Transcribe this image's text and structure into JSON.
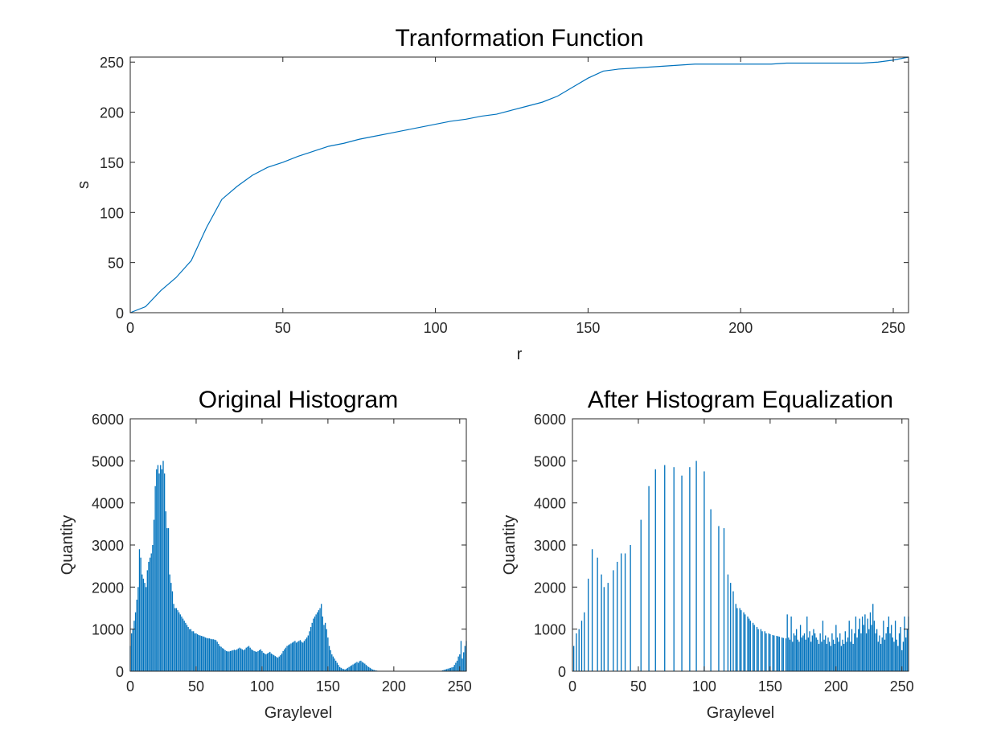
{
  "chart_data": [
    {
      "type": "line",
      "title": "Tranformation Function",
      "xlabel": "r",
      "ylabel": "s",
      "color": "#0072bd",
      "x": [
        0,
        5,
        10,
        15,
        20,
        25,
        30,
        35,
        40,
        45,
        50,
        55,
        60,
        65,
        70,
        75,
        80,
        85,
        90,
        95,
        100,
        105,
        110,
        115,
        120,
        125,
        130,
        135,
        140,
        145,
        150,
        155,
        160,
        165,
        170,
        175,
        180,
        185,
        190,
        195,
        200,
        205,
        210,
        215,
        220,
        225,
        230,
        235,
        240,
        245,
        250,
        255
      ],
      "values": [
        0,
        6,
        22,
        35,
        52,
        85,
        113,
        126,
        137,
        145,
        150,
        156,
        161,
        166,
        169,
        173,
        176,
        179,
        182,
        185,
        188,
        191,
        193,
        196,
        198,
        202,
        206,
        210,
        216,
        225,
        234,
        241,
        243,
        244,
        245,
        246,
        247,
        248,
        248,
        248,
        248,
        248,
        248,
        249,
        249,
        249,
        249,
        249,
        249,
        250,
        252,
        255
      ],
      "xlim": [
        0,
        255
      ],
      "xticks": [
        0,
        50,
        100,
        150,
        200,
        250
      ],
      "ylim": [
        0,
        255
      ],
      "yticks": [
        0,
        50,
        100,
        150,
        200,
        250
      ]
    },
    {
      "type": "bar",
      "title": "Original Histogram",
      "xlabel": "Graylevel",
      "ylabel": "Quantity",
      "color": "#0072bd",
      "x": [
        0,
        1,
        2,
        3,
        4,
        5,
        6,
        7,
        8,
        9,
        10,
        11,
        12,
        13,
        14,
        15,
        16,
        17,
        18,
        19,
        20,
        21,
        22,
        23,
        24,
        25,
        26,
        27,
        28,
        29,
        30,
        31,
        32,
        33,
        34,
        35,
        36,
        37,
        38,
        39,
        40,
        41,
        42,
        43,
        44,
        45,
        46,
        47,
        48,
        49,
        50,
        51,
        52,
        53,
        54,
        55,
        56,
        57,
        58,
        59,
        60,
        61,
        62,
        63,
        64,
        65,
        66,
        67,
        68,
        69,
        70,
        71,
        72,
        73,
        74,
        75,
        76,
        77,
        78,
        79,
        80,
        81,
        82,
        83,
        84,
        85,
        86,
        87,
        88,
        89,
        90,
        91,
        92,
        93,
        94,
        95,
        96,
        97,
        98,
        99,
        100,
        101,
        102,
        103,
        104,
        105,
        106,
        107,
        108,
        109,
        110,
        111,
        112,
        113,
        114,
        115,
        116,
        117,
        118,
        119,
        120,
        121,
        122,
        123,
        124,
        125,
        126,
        127,
        128,
        129,
        130,
        131,
        132,
        133,
        134,
        135,
        136,
        137,
        138,
        139,
        140,
        141,
        142,
        143,
        144,
        145,
        146,
        147,
        148,
        149,
        150,
        151,
        152,
        153,
        154,
        155,
        156,
        157,
        158,
        159,
        160,
        161,
        162,
        163,
        164,
        165,
        166,
        167,
        168,
        169,
        170,
        171,
        172,
        173,
        174,
        175,
        176,
        177,
        178,
        179,
        180,
        181,
        182,
        183,
        184,
        185,
        186,
        187,
        188,
        189,
        190,
        191,
        192,
        193,
        194,
        195,
        196,
        197,
        198,
        199,
        200,
        201,
        202,
        203,
        204,
        205,
        206,
        207,
        208,
        209,
        210,
        211,
        212,
        213,
        214,
        215,
        216,
        217,
        218,
        219,
        220,
        221,
        222,
        223,
        224,
        225,
        226,
        227,
        228,
        229,
        230,
        231,
        232,
        233,
        234,
        235,
        236,
        237,
        238,
        239,
        240,
        241,
        242,
        243,
        244,
        245,
        246,
        247,
        248,
        249,
        250,
        251,
        252,
        253,
        254,
        255
      ],
      "values": [
        600,
        900,
        1000,
        1200,
        1400,
        1700,
        2000,
        2900,
        2700,
        2300,
        2200,
        2100,
        2000,
        2400,
        2600,
        2700,
        2800,
        3000,
        3600,
        4400,
        4800,
        4900,
        4700,
        4900,
        4800,
        5000,
        4700,
        3800,
        3400,
        3400,
        2300,
        2100,
        1900,
        1600,
        1500,
        1500,
        1450,
        1400,
        1350,
        1300,
        1250,
        1200,
        1150,
        1100,
        1050,
        1000,
        1000,
        950,
        950,
        900,
        900,
        880,
        860,
        850,
        840,
        830,
        820,
        800,
        790,
        780,
        780,
        770,
        760,
        760,
        750,
        740,
        700,
        650,
        600,
        580,
        550,
        530,
        500,
        480,
        470,
        470,
        480,
        490,
        500,
        510,
        500,
        520,
        540,
        560,
        540,
        520,
        500,
        520,
        560,
        580,
        600,
        560,
        520,
        500,
        480,
        470,
        460,
        480,
        500,
        520,
        480,
        440,
        420,
        400,
        420,
        440,
        460,
        420,
        400,
        380,
        360,
        340,
        320,
        350,
        380,
        420,
        480,
        520,
        560,
        600,
        620,
        640,
        660,
        680,
        700,
        720,
        680,
        700,
        720,
        740,
        700,
        680,
        720,
        760,
        800,
        850,
        950,
        1050,
        1150,
        1250,
        1300,
        1350,
        1400,
        1450,
        1500,
        1600,
        1300,
        1100,
        1150,
        1000,
        800,
        600,
        500,
        400,
        350,
        300,
        250,
        200,
        150,
        100,
        80,
        60,
        50,
        40,
        60,
        80,
        100,
        120,
        140,
        160,
        180,
        200,
        220,
        200,
        240,
        250,
        220,
        200,
        180,
        150,
        120,
        100,
        80,
        60,
        40,
        30,
        20,
        15,
        10,
        5,
        3,
        2,
        1,
        0,
        0,
        0,
        0,
        0,
        0,
        0,
        0,
        0,
        0,
        0,
        0,
        0,
        0,
        0,
        0,
        0,
        0,
        0,
        0,
        0,
        0,
        0,
        0,
        0,
        0,
        0,
        0,
        0,
        0,
        0,
        0,
        0,
        0,
        0,
        0,
        0,
        0,
        0,
        0,
        0,
        0,
        5,
        10,
        20,
        30,
        40,
        50,
        60,
        70,
        80,
        90,
        100,
        150,
        200,
        250,
        350,
        400,
        720,
        300,
        450,
        600,
        720
      ],
      "xlim": [
        0,
        255
      ],
      "xticks": [
        0,
        50,
        100,
        150,
        200,
        250
      ],
      "ylim": [
        0,
        6000
      ],
      "yticks": [
        0,
        1000,
        2000,
        3000,
        4000,
        5000,
        6000
      ]
    },
    {
      "type": "bar",
      "title": "After Histogram Equalization",
      "xlabel": "Graylevel",
      "ylabel": "Quantity",
      "color": "#0072bd",
      "x": [
        1,
        3,
        5,
        7,
        9,
        12,
        15,
        19,
        22,
        24,
        27,
        31,
        34,
        37,
        40,
        44,
        52,
        58,
        63,
        70,
        77,
        83,
        89,
        94,
        100,
        105,
        111,
        115,
        118,
        120,
        122,
        124,
        125,
        127,
        128,
        130,
        131,
        133,
        134,
        135,
        137,
        138,
        140,
        141,
        143,
        144,
        146,
        147,
        149,
        150,
        152,
        153,
        155,
        156,
        157,
        159,
        160,
        162,
        163,
        164,
        165,
        166,
        167,
        168,
        169,
        170,
        171,
        172,
        173,
        174,
        175,
        176,
        177,
        178,
        179,
        180,
        181,
        182,
        183,
        184,
        185,
        186,
        187,
        188,
        189,
        190,
        191,
        192,
        193,
        194,
        195,
        196,
        197,
        198,
        199,
        200,
        201,
        202,
        203,
        204,
        205,
        206,
        207,
        208,
        209,
        210,
        211,
        212,
        213,
        214,
        215,
        216,
        217,
        218,
        219,
        220,
        221,
        222,
        223,
        224,
        225,
        226,
        227,
        228,
        229,
        230,
        231,
        232,
        233,
        234,
        235,
        236,
        237,
        238,
        239,
        240,
        241,
        242,
        243,
        244,
        245,
        246,
        247,
        248,
        249,
        250,
        251,
        252,
        253,
        254,
        255
      ],
      "values": [
        600,
        900,
        1000,
        1200,
        1400,
        2200,
        2900,
        2700,
        2300,
        2000,
        2100,
        2400,
        2600,
        2800,
        2800,
        3000,
        3600,
        4400,
        4800,
        4900,
        4850,
        4650,
        4850,
        5000,
        4750,
        3850,
        3450,
        3400,
        2300,
        2100,
        1900,
        1600,
        1500,
        1500,
        1450,
        1400,
        1350,
        1300,
        1250,
        1200,
        1150,
        1100,
        1050,
        1000,
        1000,
        950,
        950,
        900,
        900,
        880,
        860,
        850,
        840,
        830,
        820,
        800,
        790,
        780,
        1350,
        800,
        750,
        1300,
        700,
        900,
        850,
        1000,
        750,
        700,
        1100,
        800,
        850,
        900,
        750,
        1300,
        800,
        950,
        700,
        850,
        1000,
        900,
        800,
        750,
        650,
        900,
        700,
        1200,
        750,
        850,
        650,
        800,
        700,
        600,
        900,
        750,
        650,
        1100,
        800,
        700,
        900,
        600,
        750,
        650,
        950,
        700,
        800,
        1200,
        700,
        1000,
        650,
        900,
        1300,
        800,
        1000,
        1250,
        900,
        1300,
        1100,
        1350,
        900,
        1250,
        1000,
        1400,
        1100,
        1600,
        1200,
        900,
        1000,
        700,
        850,
        650,
        800,
        1200,
        750,
        900,
        1050,
        1300,
        900,
        1100,
        800,
        700,
        1200,
        750,
        600,
        900,
        1050,
        500,
        700,
        1300,
        800,
        1000,
        1300
      ],
      "xlim": [
        0,
        255
      ],
      "xticks": [
        0,
        50,
        100,
        150,
        200,
        250
      ],
      "ylim": [
        0,
        6000
      ],
      "yticks": [
        0,
        1000,
        2000,
        3000,
        4000,
        5000,
        6000
      ]
    }
  ]
}
